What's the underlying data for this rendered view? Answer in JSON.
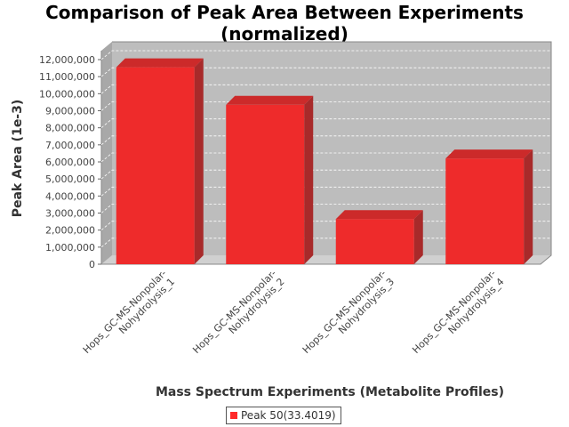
{
  "chart_data": {
    "type": "bar",
    "title_line1": "Comparison of Peak Area Between Experiments",
    "title_line2": "(normalized)",
    "xlabel": "Mass Spectrum Experiments (Metabolite Profiles)",
    "ylabel": "Peak Area (1e-3)",
    "categories": [
      [
        "Hops_GC-MS-Nonpolar-",
        "Nohydrolysis_1"
      ],
      [
        "Hops_GC-MS-Nonpolar-",
        "Nohydrolysis_2"
      ],
      [
        "Hops_GC-MS-Nonpolar-",
        "Nohydrolysis_3"
      ],
      [
        "Hops_GC-MS-Nonpolar-",
        "Nohydrolysis_4"
      ]
    ],
    "series": [
      {
        "name": "Peak 50(33.4019)",
        "values": [
          11550000,
          9350000,
          2650000,
          6200000
        ]
      }
    ],
    "ylim": [
      0,
      12000000
    ],
    "yticks": [
      0,
      1000000,
      2000000,
      3000000,
      4000000,
      5000000,
      6000000,
      7000000,
      8000000,
      9000000,
      10000000,
      11000000,
      12000000
    ],
    "ytick_labels": [
      "0",
      "1,000,000",
      "2,000,000",
      "3,000,000",
      "4,000,000",
      "5,000,000",
      "6,000,000",
      "7,000,000",
      "8,000,000",
      "9,000,000",
      "10,000,000",
      "11,000,000",
      "12,000,000"
    ],
    "grid": true,
    "legend_position": "bottom",
    "colors": {
      "bar": "#ee2b2b",
      "plot_bg": "#c0c0c0"
    }
  }
}
